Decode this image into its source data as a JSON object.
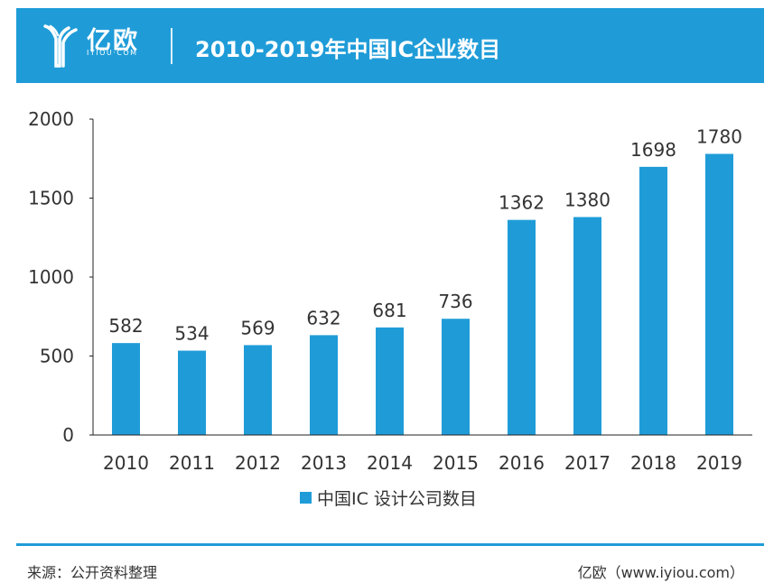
{
  "header": {
    "logo_text": "亿欧",
    "logo_sub": "IYIOU·COM",
    "title": "2010-2019年中国IC企业数目"
  },
  "colors": {
    "header_bg": "#1f9cd8",
    "bar": "#1f9cd8",
    "axis": "#222222",
    "text": "#333333"
  },
  "chart_data": {
    "type": "bar",
    "title": "",
    "categories": [
      "2010",
      "2011",
      "2012",
      "2013",
      "2014",
      "2015",
      "2016",
      "2017",
      "2018",
      "2019"
    ],
    "series": [
      {
        "name": "中国IC 设计公司数目",
        "values": [
          582,
          534,
          569,
          632,
          681,
          736,
          1362,
          1380,
          1698,
          1780
        ]
      }
    ],
    "yticks": [
      "0",
      "500",
      "1000",
      "1500",
      "2000"
    ],
    "ylim": [
      0,
      2000
    ],
    "grid": false,
    "legend": "bottom-center"
  },
  "footer": {
    "source": "来源：公开资料整理",
    "brand": "亿欧（www.iyiou.com）"
  }
}
